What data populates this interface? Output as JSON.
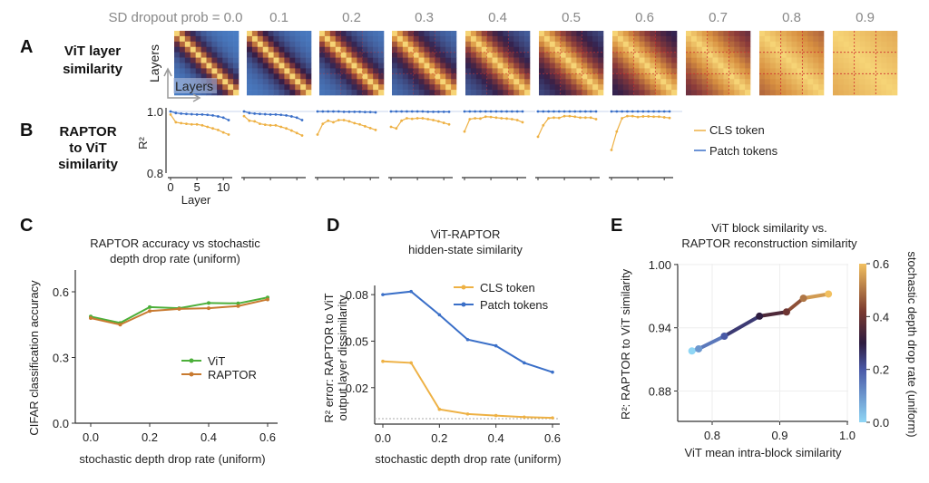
{
  "panels": {
    "A": "A",
    "B": "B",
    "C": "C",
    "D": "D",
    "E": "E"
  },
  "rowA": {
    "label1": "ViT layer",
    "label2": "similarity",
    "sd_prefix": "SD dropout prob = ",
    "axis_y": "Layers",
    "axis_x": "Layers"
  },
  "rowB": {
    "label1": "RAPTOR",
    "label2": "to ViT",
    "label3": "similarity",
    "ylabel": "R²",
    "xlabel": "Layer"
  },
  "colors": {
    "cls": "#eeb144",
    "patch": "#3a6fc8",
    "vit": "#4caf3a",
    "raptor": "#c87a30"
  },
  "chart_data": [
    {
      "id": "A",
      "type": "heatmap",
      "colormap": "blue-purple-orange-yellow",
      "dropout_probs": [
        "0.0",
        "0.1",
        "0.2",
        "0.3",
        "0.4",
        "0.5",
        "0.6",
        "0.7",
        "0.8",
        "0.9"
      ]
    },
    {
      "id": "B",
      "type": "line",
      "ylabel": "R²",
      "xlabel": "Layer",
      "ylim": [
        0.8,
        1.0
      ],
      "yticks": [
        "1.0",
        "0.8"
      ],
      "xticks": [
        "0",
        "5",
        "10"
      ],
      "x": [
        0,
        1,
        2,
        3,
        4,
        5,
        6,
        7,
        8,
        9,
        10,
        11
      ],
      "legend": [
        "CLS token",
        "Patch tokens"
      ],
      "legend_position": "right",
      "subplots": [
        {
          "cls": [
            0.99,
            0.965,
            0.962,
            0.96,
            0.958,
            0.958,
            0.955,
            0.95,
            0.945,
            0.94,
            0.932,
            0.925
          ],
          "patch": [
            1.0,
            0.995,
            0.993,
            0.992,
            0.991,
            0.99,
            0.99,
            0.989,
            0.987,
            0.984,
            0.98,
            0.972
          ]
        },
        {
          "cls": [
            0.985,
            0.97,
            0.968,
            0.96,
            0.957,
            0.955,
            0.955,
            0.95,
            0.945,
            0.938,
            0.93,
            0.922
          ],
          "patch": [
            1.0,
            0.995,
            0.993,
            0.992,
            0.991,
            0.99,
            0.99,
            0.989,
            0.987,
            0.984,
            0.98,
            0.972
          ]
        },
        {
          "cls": [
            0.925,
            0.96,
            0.97,
            0.965,
            0.972,
            0.972,
            0.968,
            0.962,
            0.958,
            0.952,
            0.946,
            0.94
          ],
          "patch": [
            1.0,
            1.0,
            1.0,
            1.0,
            1.0,
            0.999,
            0.999,
            0.999,
            0.999,
            0.998,
            0.998,
            0.997
          ]
        },
        {
          "cls": [
            0.95,
            0.945,
            0.97,
            0.978,
            0.976,
            0.978,
            0.978,
            0.975,
            0.972,
            0.968,
            0.963,
            0.958
          ],
          "patch": [
            1.0,
            1.0,
            1.0,
            1.0,
            1.0,
            1.0,
            1.0,
            0.999,
            0.999,
            0.999,
            0.999,
            0.999
          ]
        },
        {
          "cls": [
            0.935,
            0.975,
            0.978,
            0.977,
            0.983,
            0.982,
            0.98,
            0.978,
            0.977,
            0.975,
            0.972,
            0.965
          ],
          "patch": [
            1.0,
            1.0,
            1.0,
            1.0,
            1.0,
            1.0,
            1.0,
            1.0,
            1.0,
            1.0,
            1.0,
            1.0
          ]
        },
        {
          "cls": [
            0.918,
            0.955,
            0.978,
            0.98,
            0.979,
            0.985,
            0.985,
            0.983,
            0.98,
            0.98,
            0.98,
            0.975
          ],
          "patch": [
            1.0,
            1.0,
            1.0,
            1.0,
            1.0,
            1.0,
            1.0,
            1.0,
            1.0,
            1.0,
            1.0,
            1.0
          ]
        },
        {
          "cls": [
            0.875,
            0.935,
            0.978,
            0.985,
            0.985,
            0.982,
            0.984,
            0.984,
            0.983,
            0.983,
            0.981,
            0.979
          ],
          "patch": [
            1.0,
            1.0,
            1.0,
            1.0,
            1.0,
            1.0,
            1.0,
            1.0,
            1.0,
            1.0,
            1.0,
            1.0
          ]
        }
      ]
    },
    {
      "id": "C",
      "type": "line",
      "title1": "RAPTOR accuracy vs stochastic",
      "title2": "depth drop rate (uniform)",
      "xlabel": "stochastic depth drop rate (uniform)",
      "ylabel": "CIFAR classification accuracy",
      "xlim": [
        0,
        0.6
      ],
      "ylim": [
        0,
        0.7
      ],
      "xticks": [
        "0.0",
        "0.2",
        "0.4",
        "0.6"
      ],
      "yticks": [
        "0.0",
        "0.3",
        "0.6"
      ],
      "x": [
        0,
        0.1,
        0.2,
        0.3,
        0.4,
        0.5,
        0.6
      ],
      "series": [
        {
          "name": "ViT",
          "values": [
            0.487,
            0.458,
            0.53,
            0.525,
            0.549,
            0.547,
            0.574
          ]
        },
        {
          "name": "RAPTOR",
          "values": [
            0.48,
            0.45,
            0.512,
            0.522,
            0.525,
            0.535,
            0.565
          ]
        }
      ],
      "legend_position": "center-right"
    },
    {
      "id": "D",
      "type": "line",
      "title1": "ViT-RAPTOR",
      "title2": "hidden-state similarity",
      "xlabel": "stochastic depth drop rate (uniform)",
      "ylabel1": "R² error: RAPTOR to ViT",
      "ylabel2": "output layer dissimilarity",
      "xlim": [
        0,
        0.6
      ],
      "ylim": [
        -0.003,
        0.088
      ],
      "xticks": [
        "0.0",
        "0.2",
        "0.4",
        "0.6"
      ],
      "yticks": [
        "0.02",
        "0.05",
        "0.08"
      ],
      "x": [
        0,
        0.1,
        0.2,
        0.3,
        0.4,
        0.5,
        0.6
      ],
      "series": [
        {
          "name": "CLS token",
          "values": [
            0.037,
            0.036,
            0.006,
            0.003,
            0.002,
            0.001,
            0.0005
          ]
        },
        {
          "name": "Patch tokens",
          "values": [
            0.08,
            0.082,
            0.067,
            0.051,
            0.047,
            0.036,
            0.03
          ]
        }
      ],
      "reference_line": 0.0,
      "legend_position": "top-right"
    },
    {
      "id": "E",
      "type": "line",
      "title1": "ViT block similarity vs.",
      "title2": "RAPTOR reconstruction similarity",
      "xlabel": "ViT mean intra-block similarity",
      "ylabel": "R²: RAPTOR to ViT similarity",
      "colorbar_label": "stochastic depth drop rate (uniform)",
      "xlim": [
        0.75,
        1.0
      ],
      "ylim": [
        0.855,
        1.0
      ],
      "xticks": [
        "0.8",
        "0.9",
        "1.0"
      ],
      "yticks": [
        "0.88",
        "0.94",
        "1.00"
      ],
      "colorbar_ticks": [
        "0.0",
        "0.2",
        "0.4",
        "0.6"
      ],
      "colorbar_range": [
        0,
        0.6
      ],
      "x": [
        0.77,
        0.78,
        0.818,
        0.87,
        0.91,
        0.935,
        0.972
      ],
      "y": [
        0.918,
        0.92,
        0.932,
        0.951,
        0.955,
        0.968,
        0.972
      ],
      "color_values": [
        0,
        0.1,
        0.2,
        0.3,
        0.4,
        0.5,
        0.6
      ],
      "grid": true
    }
  ]
}
